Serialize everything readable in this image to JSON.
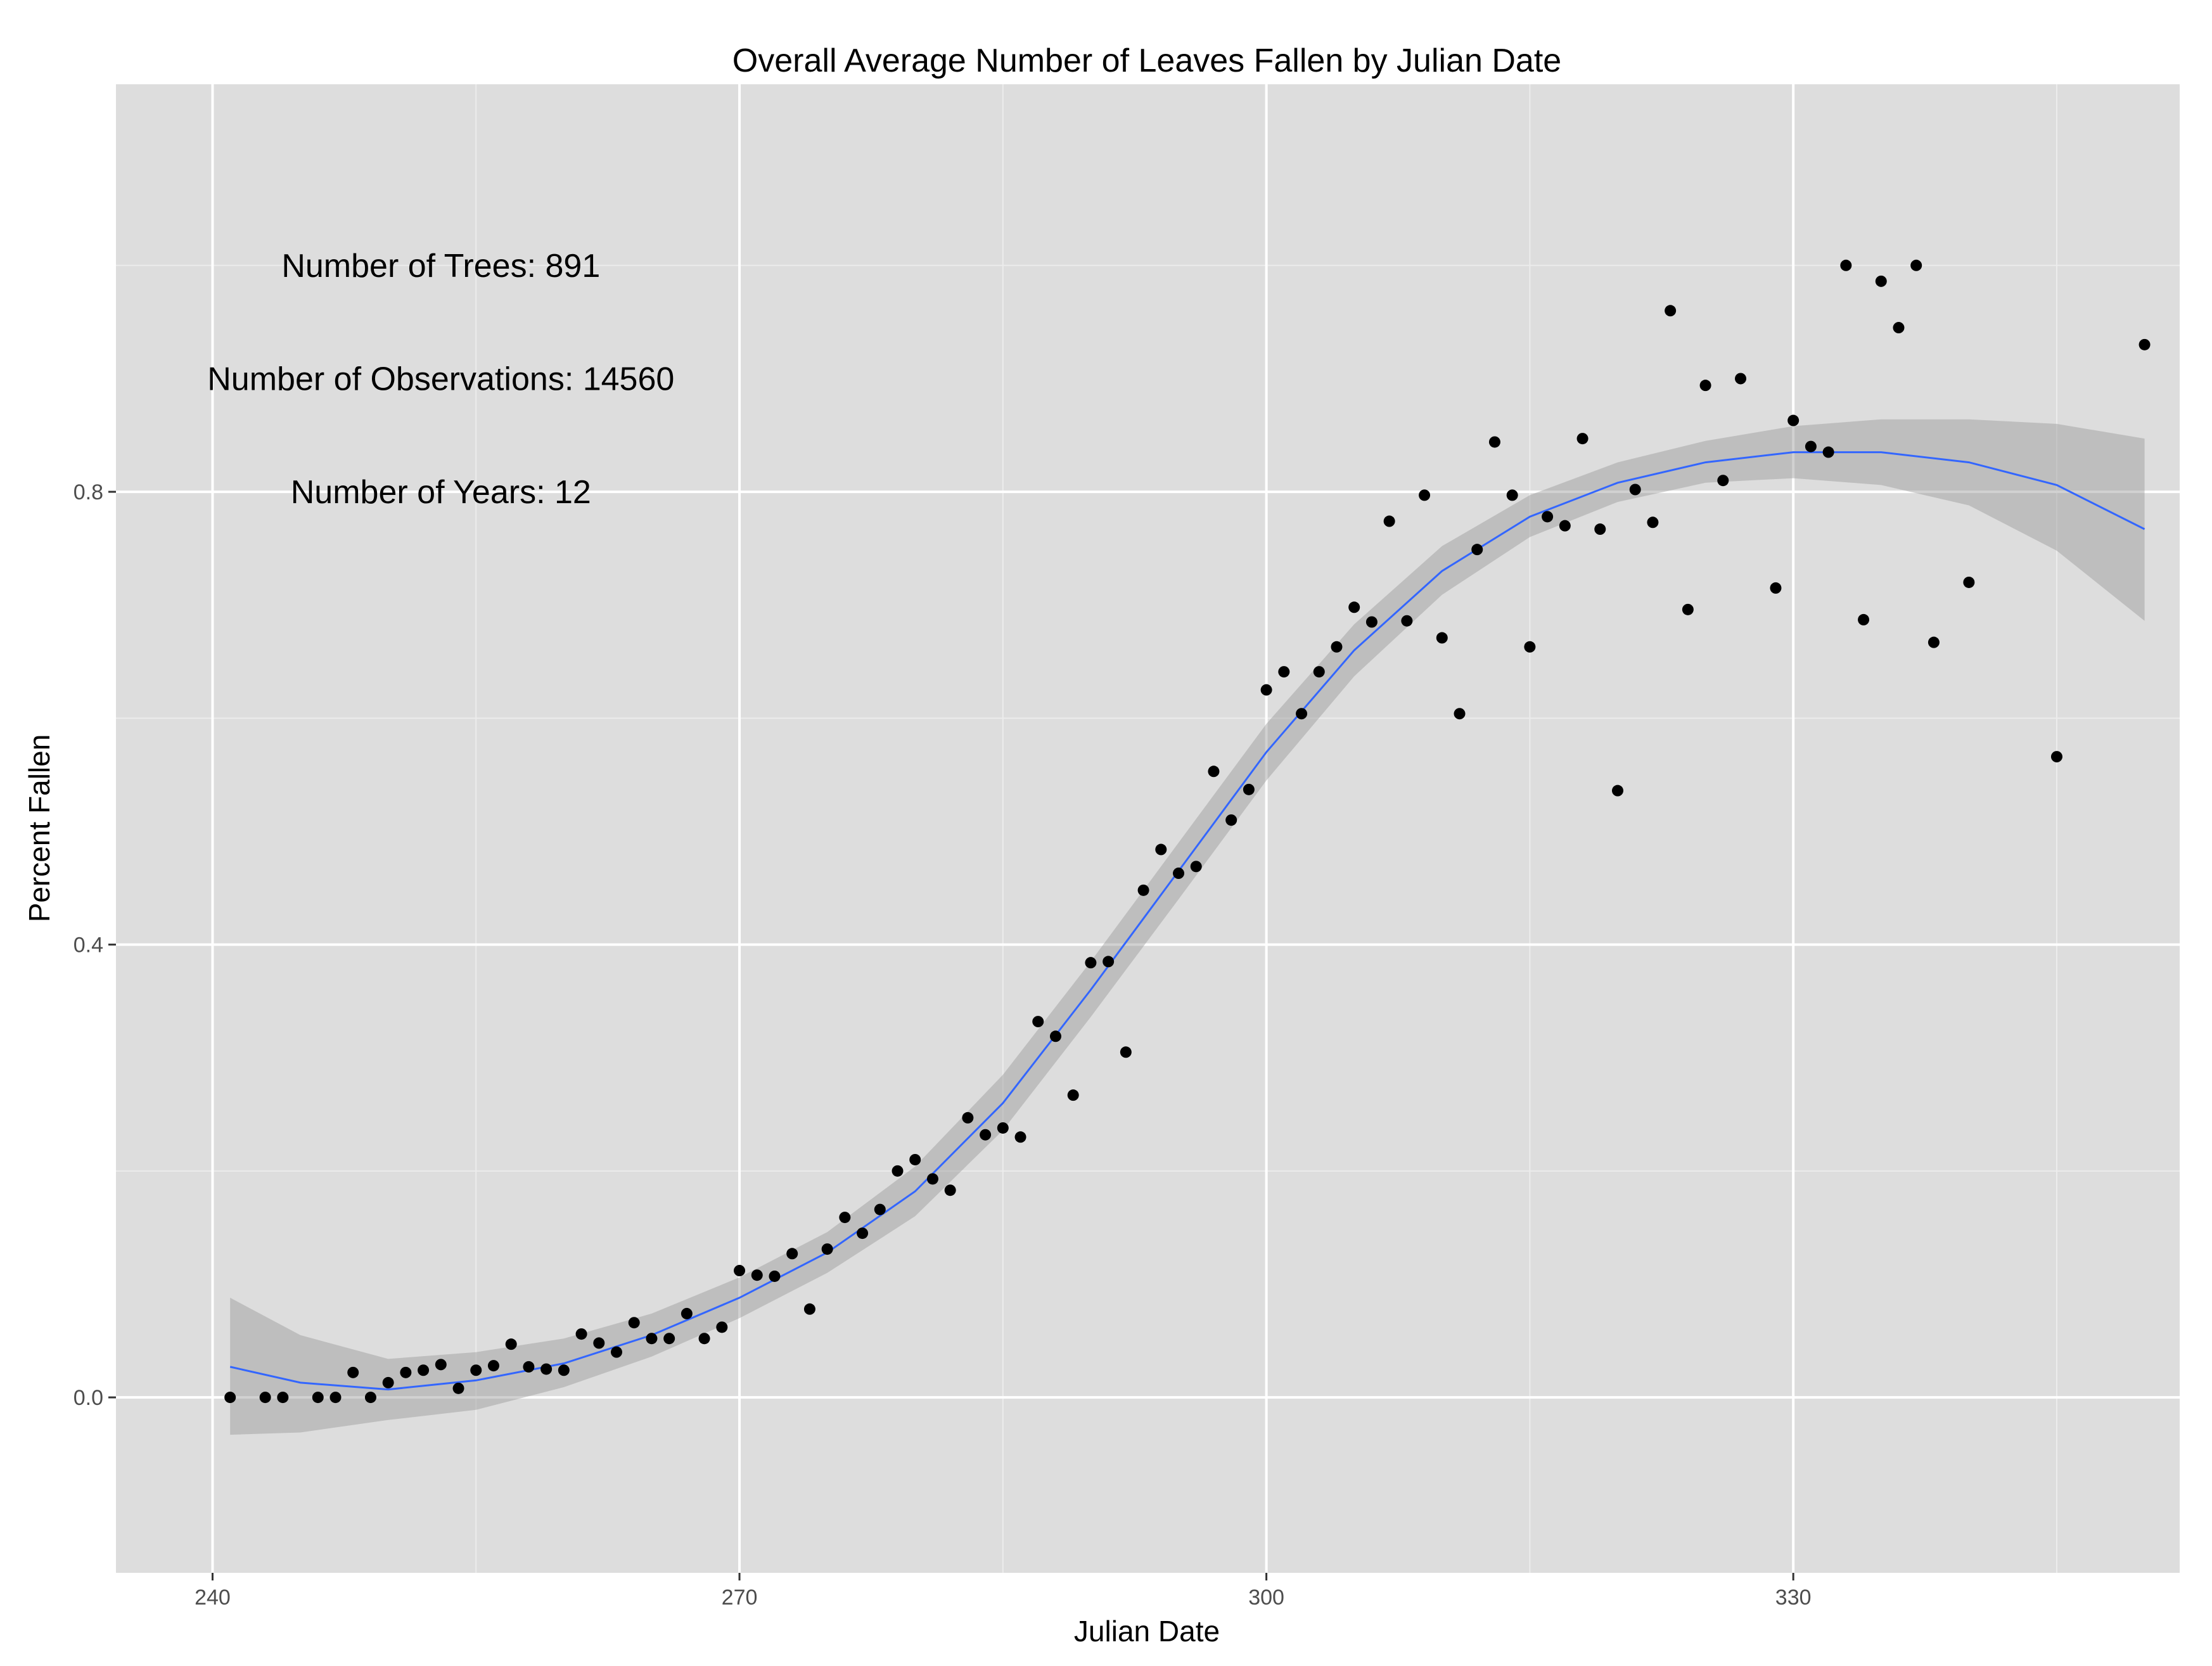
{
  "chart_data": {
    "type": "scatter",
    "title": "Overall Average Number of Leaves Fallen by Julian Date",
    "xlabel": "Julian Date",
    "ylabel": "Percent Fallen",
    "xlim": [
      234.5,
      352
    ],
    "ylim": [
      -0.155,
      1.16
    ],
    "x_ticks": [
      240,
      270,
      300,
      330
    ],
    "y_ticks": [
      0.0,
      0.4,
      0.8
    ],
    "y_tick_labels": [
      "0.0",
      "0.4",
      "0.8"
    ],
    "grid": true,
    "legend": "none",
    "annotations": [
      {
        "text": "Number of Trees: 891",
        "x": 253,
        "y": 1.0
      },
      {
        "text": "Number of Observations: 14560",
        "x": 253,
        "y": 0.9
      },
      {
        "text": "Number of Years: 12",
        "x": 253,
        "y": 0.8
      }
    ],
    "series": [
      {
        "kind": "points",
        "points": [
          [
            241,
            0.0
          ],
          [
            243,
            0.0
          ],
          [
            244,
            0.0
          ],
          [
            246,
            0.0
          ],
          [
            247,
            0.0
          ],
          [
            248,
            0.022
          ],
          [
            249,
            0.0
          ],
          [
            250,
            0.013
          ],
          [
            251,
            0.022
          ],
          [
            252,
            0.024
          ],
          [
            253,
            0.029
          ],
          [
            254,
            0.008
          ],
          [
            255,
            0.024
          ],
          [
            256,
            0.028
          ],
          [
            257,
            0.047
          ],
          [
            258,
            0.027
          ],
          [
            259,
            0.025
          ],
          [
            260,
            0.024
          ],
          [
            261,
            0.056
          ],
          [
            262,
            0.048
          ],
          [
            263,
            0.04
          ],
          [
            264,
            0.066
          ],
          [
            265,
            0.052
          ],
          [
            266,
            0.052
          ],
          [
            267,
            0.074
          ],
          [
            268,
            0.052
          ],
          [
            269,
            0.062
          ],
          [
            270,
            0.112
          ],
          [
            271,
            0.108
          ],
          [
            272,
            0.107
          ],
          [
            273,
            0.127
          ],
          [
            274,
            0.078
          ],
          [
            275,
            0.131
          ],
          [
            276,
            0.159
          ],
          [
            277,
            0.145
          ],
          [
            278,
            0.166
          ],
          [
            279,
            0.2
          ],
          [
            280,
            0.21
          ],
          [
            281,
            0.193
          ],
          [
            282,
            0.183
          ],
          [
            283,
            0.247
          ],
          [
            284,
            0.232
          ],
          [
            285,
            0.238
          ],
          [
            286,
            0.23
          ],
          [
            287,
            0.332
          ],
          [
            288,
            0.319
          ],
          [
            289,
            0.267
          ],
          [
            290,
            0.384
          ],
          [
            291,
            0.385
          ],
          [
            292,
            0.305
          ],
          [
            293,
            0.448
          ],
          [
            294,
            0.484
          ],
          [
            295,
            0.463
          ],
          [
            296,
            0.469
          ],
          [
            297,
            0.553
          ],
          [
            298,
            0.51
          ],
          [
            299,
            0.537
          ],
          [
            300,
            0.625
          ],
          [
            301,
            0.641
          ],
          [
            302,
            0.604
          ],
          [
            303,
            0.641
          ],
          [
            304,
            0.663
          ],
          [
            305,
            0.698
          ],
          [
            306,
            0.685
          ],
          [
            307,
            0.774
          ],
          [
            308,
            0.686
          ],
          [
            309,
            0.797
          ],
          [
            310,
            0.671
          ],
          [
            311,
            0.604
          ],
          [
            312,
            0.749
          ],
          [
            313,
            0.844
          ],
          [
            314,
            0.797
          ],
          [
            315,
            0.663
          ],
          [
            316,
            0.778
          ],
          [
            317,
            0.77
          ],
          [
            318,
            0.847
          ],
          [
            319,
            0.767
          ],
          [
            320,
            0.536
          ],
          [
            321,
            0.802
          ],
          [
            322,
            0.773
          ],
          [
            323,
            0.96
          ],
          [
            324,
            0.696
          ],
          [
            325,
            0.894
          ],
          [
            326,
            0.81
          ],
          [
            327,
            0.9
          ],
          [
            329,
            0.715
          ],
          [
            330,
            0.863
          ],
          [
            331,
            0.84
          ],
          [
            332,
            0.835
          ],
          [
            333,
            1.0
          ],
          [
            334,
            0.687
          ],
          [
            335,
            0.986
          ],
          [
            336,
            0.945
          ],
          [
            337,
            1.0
          ],
          [
            338,
            0.667
          ],
          [
            340,
            0.72
          ],
          [
            345,
            0.566
          ],
          [
            350,
            0.93
          ]
        ]
      },
      {
        "kind": "smooth",
        "x": [
          241,
          245,
          250,
          255,
          260,
          265,
          270,
          275,
          280,
          285,
          290,
          295,
          300,
          305,
          310,
          315,
          320,
          325,
          330,
          335,
          340,
          345,
          350
        ],
        "y": [
          0.027,
          0.013,
          0.007,
          0.015,
          0.03,
          0.055,
          0.088,
          0.128,
          0.182,
          0.26,
          0.36,
          0.465,
          0.57,
          0.66,
          0.73,
          0.778,
          0.808,
          0.826,
          0.835,
          0.835,
          0.826,
          0.806,
          0.767
        ],
        "lower": [
          -0.033,
          -0.031,
          -0.02,
          -0.011,
          0.009,
          0.036,
          0.07,
          0.11,
          0.16,
          0.236,
          0.336,
          0.44,
          0.545,
          0.637,
          0.709,
          0.76,
          0.791,
          0.808,
          0.812,
          0.806,
          0.788,
          0.748,
          0.686
        ],
        "upper": [
          0.088,
          0.055,
          0.034,
          0.04,
          0.052,
          0.074,
          0.106,
          0.146,
          0.204,
          0.285,
          0.385,
          0.49,
          0.595,
          0.683,
          0.752,
          0.797,
          0.826,
          0.845,
          0.858,
          0.864,
          0.864,
          0.86,
          0.847
        ],
        "line_color": "#3366ff",
        "band_color": "#999999"
      }
    ],
    "colors": {
      "panel_background": "#dddddd",
      "grid_major": "#ffffff",
      "grid_minor": "#ececec",
      "points": "#000000",
      "tick_text": "#4d4d4d"
    }
  }
}
